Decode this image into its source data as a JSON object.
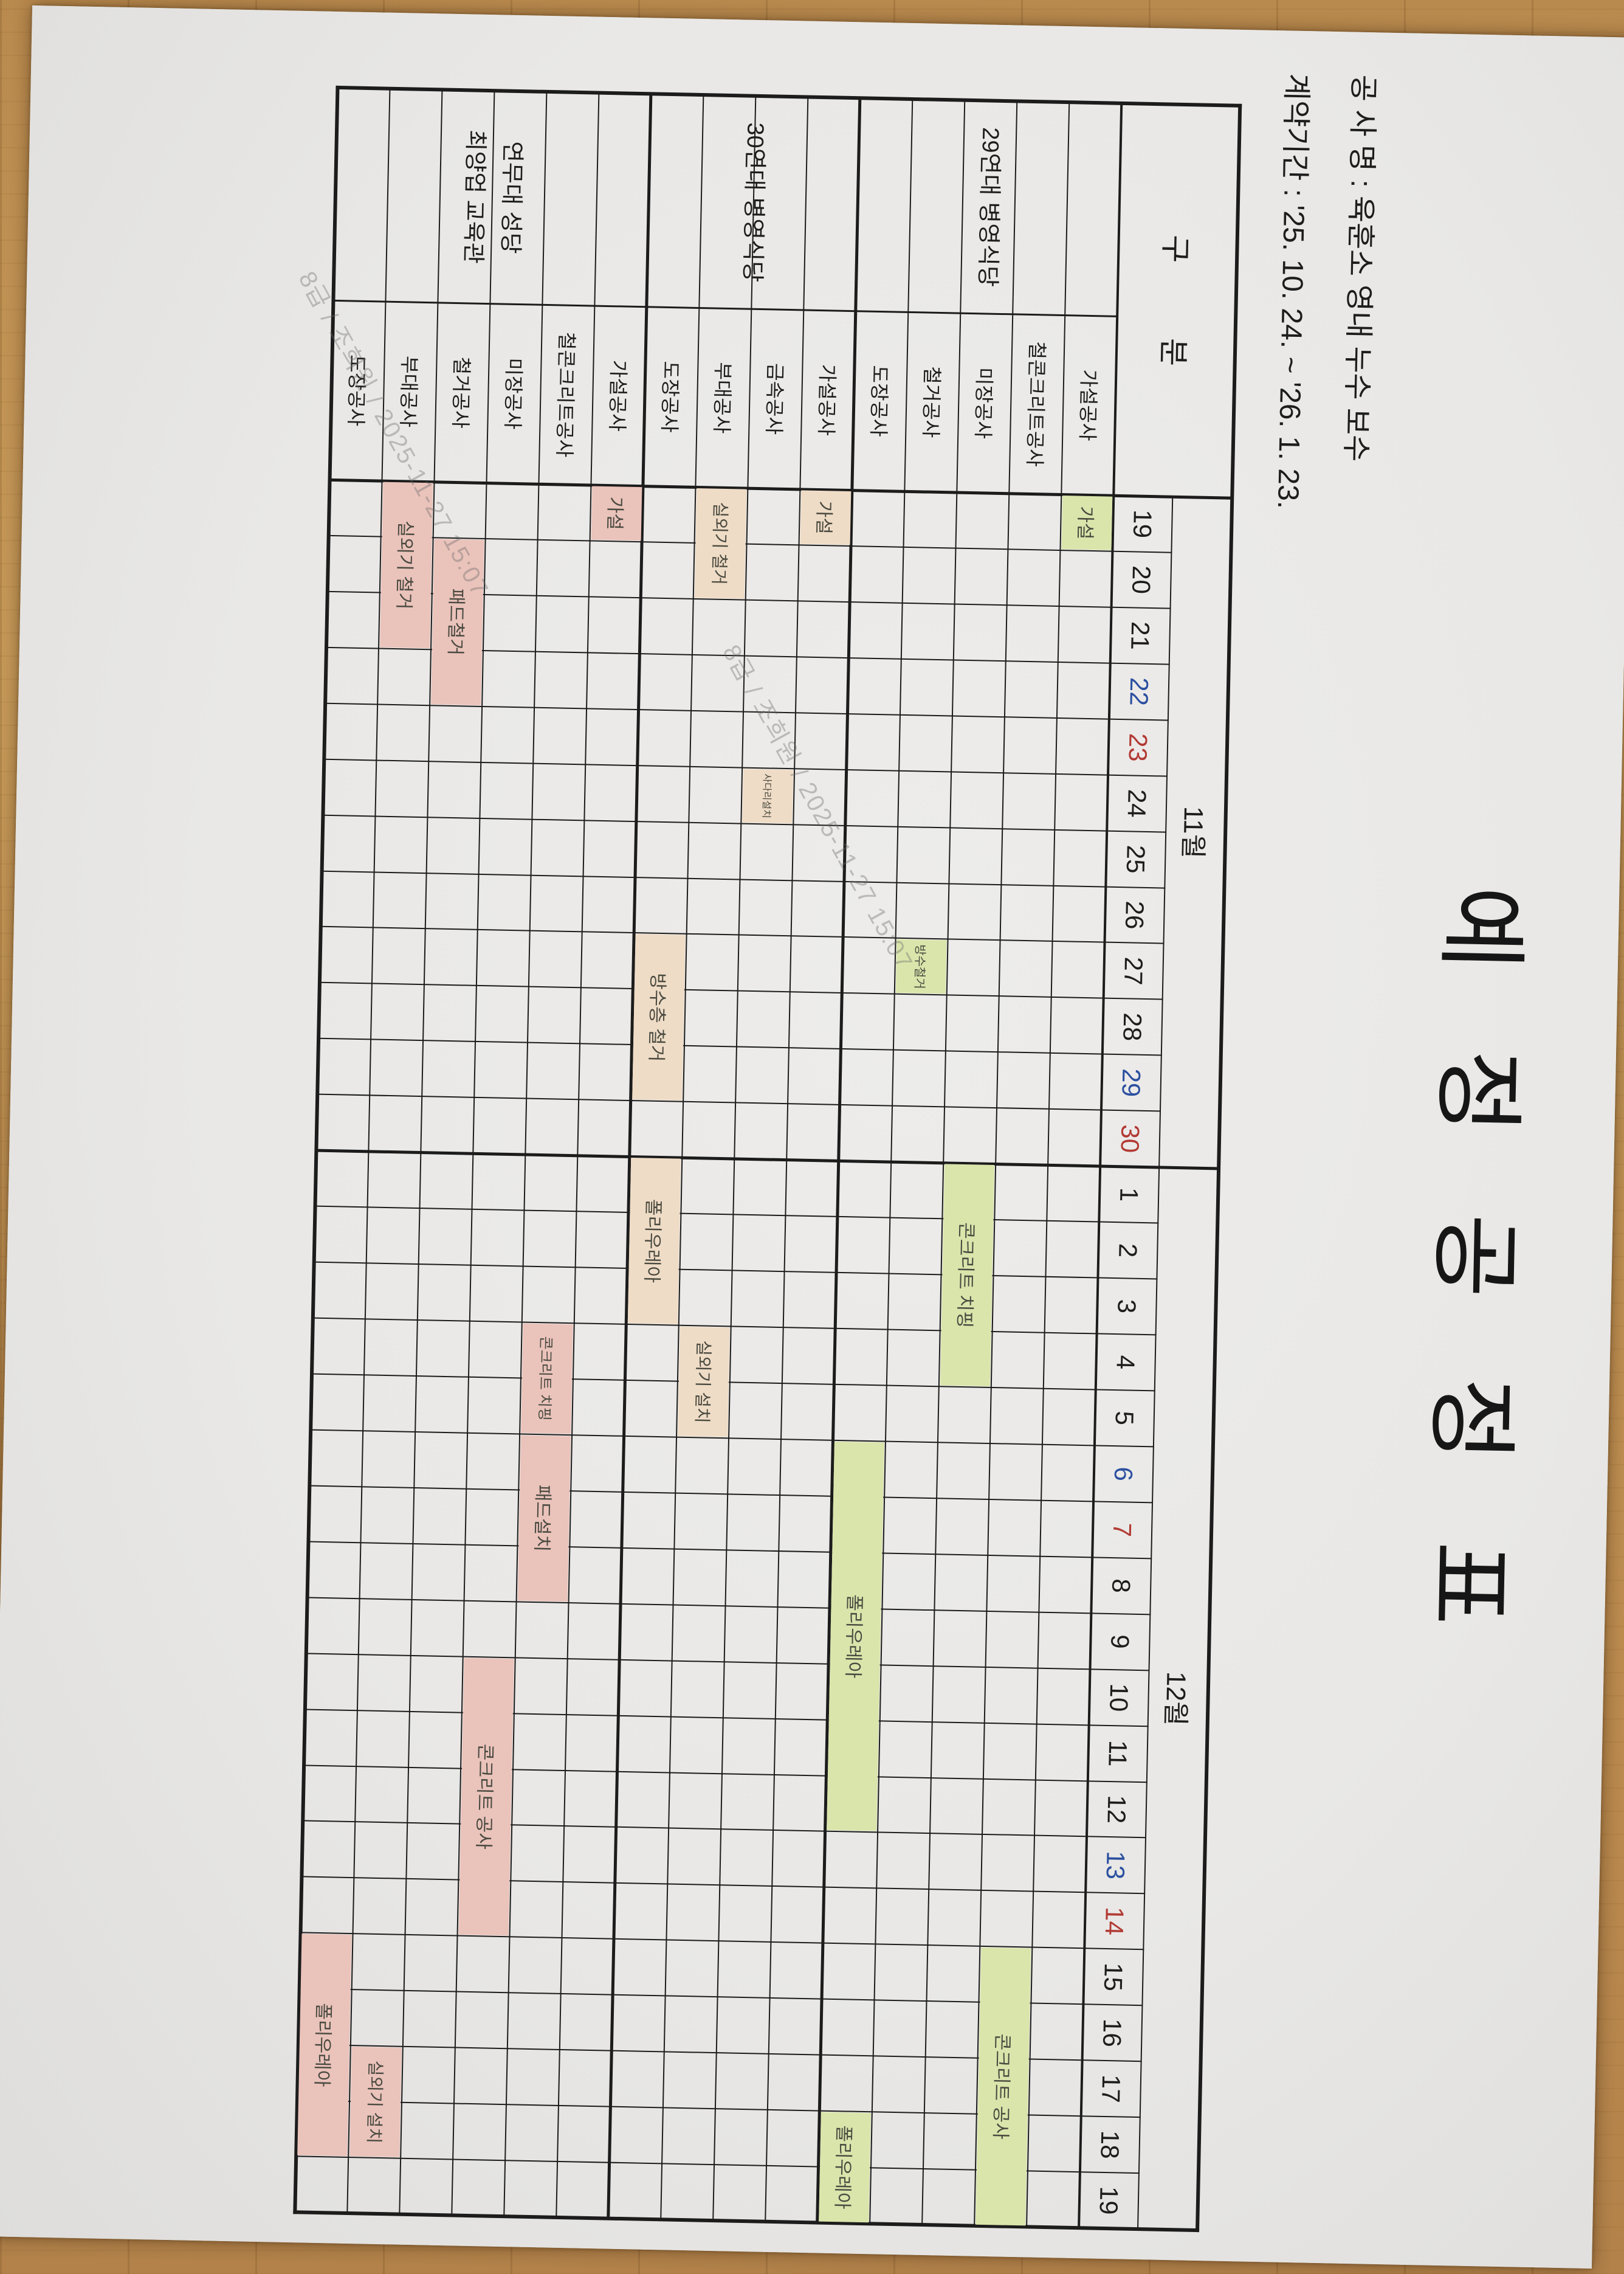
{
  "photo": {
    "description_labels": {
      "wood_desk": "wood-desk-background",
      "paper_sheet": "schedule-paper"
    },
    "watermark": {
      "text": "8급 / 조희원 / 2025-11-27 15:07",
      "color": "#6a6a6a"
    }
  },
  "document": {
    "title": "예 정 공 정 표",
    "project_line": "공 사 명 : 육훈소 영내 누수 보수",
    "contract_line": "계약기간 : '25. 10. 24.  ~  '26. 1. 23.",
    "table": {
      "corner_label": "구  분",
      "months": [
        {
          "label": "11월",
          "span": [
            1,
            12
          ]
        },
        {
          "label": "12월",
          "span": [
            13,
            31
          ]
        }
      ],
      "days": [
        "19",
        "20",
        "21",
        "22",
        "23",
        "24",
        "25",
        "26",
        "27",
        "28",
        "29",
        "30",
        "1",
        "2",
        "3",
        "4",
        "5",
        "6",
        "7",
        "8",
        "9",
        "10",
        "11",
        "12",
        "13",
        "14",
        "15",
        "16",
        "17",
        "18",
        "19"
      ],
      "saturday_day_indices": [
        4,
        11,
        18,
        25
      ],
      "sunday_day_indices": [
        5,
        12,
        19,
        26
      ],
      "weekday_colors": {
        "saturday": "#2c50a0",
        "sunday": "#b23a34",
        "normal": "#222222"
      },
      "groups": [
        {
          "name_lines": [
            "29연대 병영식당"
          ],
          "bar_color": "#d9e5ab",
          "rows": [
            {
              "label": "가설공사",
              "bars": [
                {
                  "text": "가설",
                  "start": 1,
                  "end": 1
                }
              ]
            },
            {
              "label": "철콘크리트공사",
              "bars": [
                {
                  "text": "콘크리트 공사",
                  "start": 27,
                  "end": 31
                }
              ]
            },
            {
              "label": "미장공사",
              "bars": [
                {
                  "text": "콘크리트 치핑",
                  "start": 13,
                  "end": 16
                }
              ]
            },
            {
              "label": "철거공사",
              "bars": [
                {
                  "text": "방수철거",
                  "start": 9,
                  "end": 9
                }
              ]
            },
            {
              "label": "도장공사",
              "bars": [
                {
                  "text": "폴리우레아",
                  "start": 18,
                  "end": 24
                },
                {
                  "text": "폴리우레아",
                  "start": 30,
                  "end": 31
                }
              ]
            }
          ]
        },
        {
          "name_lines": [
            "30연대 병영식당"
          ],
          "bar_color": "#efdcc6",
          "rows": [
            {
              "label": "가설공사",
              "bars": [
                {
                  "text": "가설",
                  "start": 1,
                  "end": 1
                }
              ]
            },
            {
              "label": "금속공사",
              "bars": [
                {
                  "text": "사다리설치",
                  "start": 6,
                  "end": 6
                }
              ]
            },
            {
              "label": "부대공사",
              "bars": [
                {
                  "text": "실외기 철거",
                  "start": 1,
                  "end": 2
                },
                {
                  "text": "실외기 설치",
                  "start": 16,
                  "end": 17
                }
              ]
            },
            {
              "label": "도장공사",
              "bars": [
                {
                  "text": "방수층 철거",
                  "start": 9,
                  "end": 11
                },
                {
                  "text": "폴리우레아",
                  "start": 13,
                  "end": 15
                }
              ]
            }
          ]
        },
        {
          "name_lines": [
            "연무대 성당",
            "최양업 교육관"
          ],
          "bar_color": "#eac3bb",
          "rows": [
            {
              "label": "가설공사",
              "bars": [
                {
                  "text": "가설",
                  "start": 1,
                  "end": 1
                }
              ]
            },
            {
              "label": "철콘크리트공사",
              "bars": [
                {
                  "text": "콘크리트 치핑",
                  "start": 16,
                  "end": 17
                },
                {
                  "text": "패드설치",
                  "start": 18,
                  "end": 20
                }
              ]
            },
            {
              "label": "미장공사",
              "bars": [
                {
                  "text": "콘크리트 공사",
                  "start": 22,
                  "end": 26
                }
              ]
            },
            {
              "label": "철거공사",
              "bars": [
                {
                  "text": "패드철거",
                  "start": 2,
                  "end": 4
                }
              ]
            },
            {
              "label": "부대공사",
              "bars": [
                {
                  "text": "실외기 철거",
                  "start": 1,
                  "end": 3
                },
                {
                  "text": "실외기 설치",
                  "start": 29,
                  "end": 30
                }
              ]
            },
            {
              "label": "도장공사",
              "bars": [
                {
                  "text": "폴리우레아",
                  "start": 27,
                  "end": 30
                }
              ]
            }
          ]
        }
      ]
    }
  }
}
